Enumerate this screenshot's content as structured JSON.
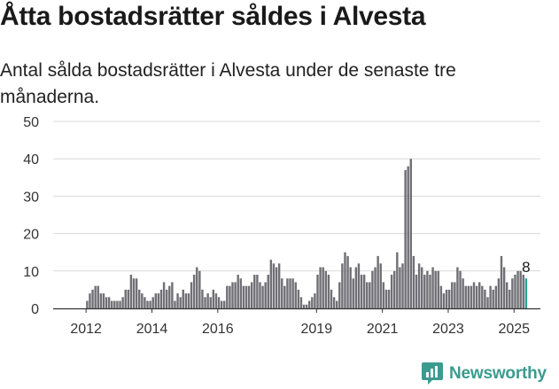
{
  "title": "Åtta bostadsrätter såldes i Alvesta",
  "subtitle": "Antal sålda bostadsrätter i Alvesta under de senaste tre månaderna.",
  "brand": "Newsworthy",
  "colors": {
    "bar": "#6f6f75",
    "highlight": "#2a9d8f",
    "grid": "#d9d9d9",
    "axis": "#333333",
    "brand": "#3a9b8f"
  },
  "chart_data": {
    "type": "bar",
    "ylim": [
      0,
      50
    ],
    "yticks": [
      0,
      10,
      20,
      30,
      40,
      50
    ],
    "x_range": [
      2011.0,
      2025.8
    ],
    "xticks": [
      {
        "value": 2012,
        "label": "2012"
      },
      {
        "value": 2014,
        "label": "2014"
      },
      {
        "value": 2016,
        "label": "2016"
      },
      {
        "value": 2019,
        "label": "2019"
      },
      {
        "value": 2021,
        "label": "2021"
      },
      {
        "value": 2023,
        "label": "2023"
      },
      {
        "value": 2025,
        "label": "2025"
      }
    ],
    "start": "2012-01",
    "values": [
      2,
      4,
      5,
      6,
      6,
      4,
      4,
      3,
      3,
      2,
      2,
      2,
      2,
      3,
      5,
      5,
      9,
      8,
      8,
      5,
      4,
      3,
      2,
      2,
      3,
      4,
      4,
      5,
      7,
      5,
      6,
      7,
      2,
      4,
      3,
      5,
      4,
      4,
      7,
      9,
      11,
      10,
      5,
      3,
      4,
      3,
      5,
      4,
      3,
      2,
      2,
      6,
      6,
      7,
      7,
      9,
      8,
      6,
      6,
      6,
      7,
      9,
      9,
      7,
      6,
      7,
      9,
      13,
      12,
      11,
      12,
      8,
      6,
      8,
      8,
      8,
      7,
      5,
      3,
      1,
      1,
      2,
      3,
      4,
      9,
      11,
      11,
      10,
      9,
      5,
      3,
      2,
      7,
      12,
      15,
      14,
      11,
      8,
      11,
      12,
      9,
      9,
      7,
      7,
      10,
      11,
      14,
      12,
      7,
      5,
      5,
      9,
      10,
      15,
      11,
      12,
      37,
      38,
      40,
      14,
      9,
      12,
      11,
      9,
      10,
      9,
      11,
      10,
      10,
      6,
      4,
      5,
      5,
      7,
      7,
      11,
      10,
      8,
      6,
      6,
      6,
      7,
      6,
      7,
      6,
      5,
      3,
      6,
      5,
      6,
      8,
      14,
      11,
      7,
      5,
      8,
      9,
      10,
      10,
      9,
      8
    ],
    "highlight_last": true,
    "last_label": "8"
  }
}
